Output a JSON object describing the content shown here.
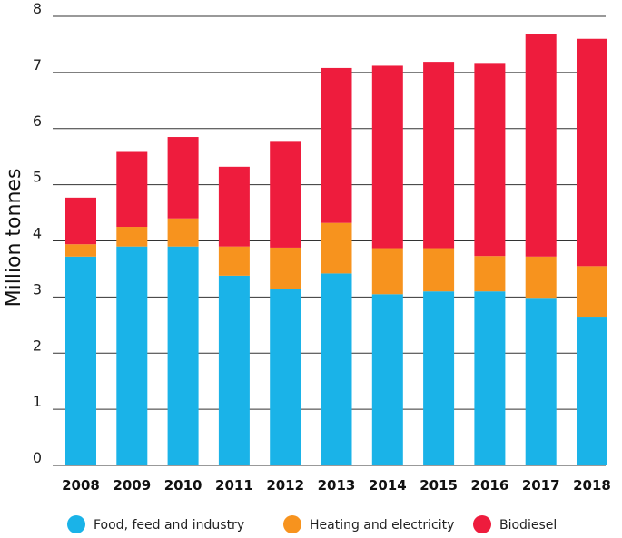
{
  "chart_data": {
    "type": "bar",
    "stacked": true,
    "title": "",
    "xlabel": "",
    "ylabel": "Million tonnes",
    "ylim": [
      0,
      8
    ],
    "yticks": [
      "0",
      "1",
      "2",
      "3",
      "4",
      "5",
      "6",
      "7",
      "8"
    ],
    "grid": true,
    "legend_position": "bottom",
    "categories": [
      "2008",
      "2009",
      "2010",
      "2011",
      "2012",
      "2013",
      "2014",
      "2015",
      "2016",
      "2017",
      "2018"
    ],
    "series": [
      {
        "name": "Food, feed and industry",
        "color": "#1ab3e8",
        "values": [
          3.72,
          3.9,
          3.9,
          3.38,
          3.15,
          3.42,
          3.05,
          3.1,
          3.1,
          2.97,
          2.65
        ]
      },
      {
        "name": "Heating and electricity",
        "color": "#f7931e",
        "values": [
          0.22,
          0.35,
          0.5,
          0.52,
          0.73,
          0.9,
          0.82,
          0.77,
          0.63,
          0.75,
          0.9
        ]
      },
      {
        "name": "Biodiesel",
        "color": "#ee1c3d",
        "values": [
          0.83,
          1.35,
          1.45,
          1.42,
          1.9,
          2.76,
          3.25,
          3.32,
          3.44,
          3.97,
          4.05
        ]
      }
    ]
  }
}
